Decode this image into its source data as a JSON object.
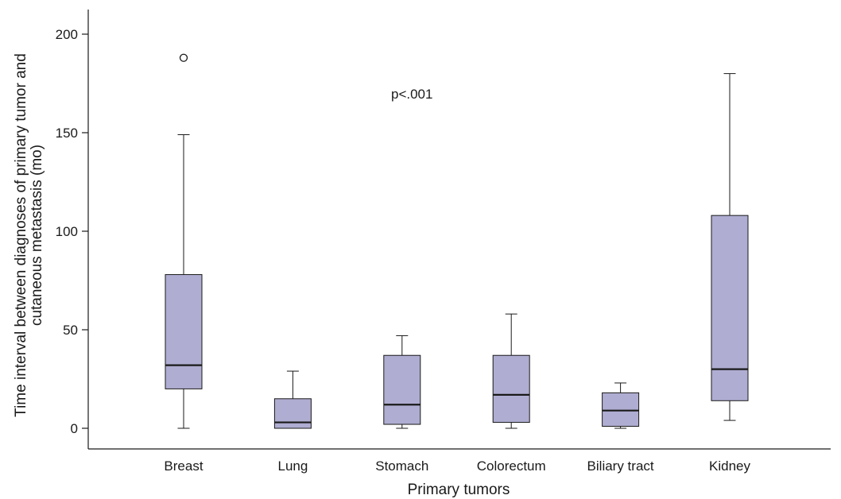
{
  "chart_data": {
    "type": "box",
    "xlabel": "Primary tumors",
    "ylabel_lines": [
      "Time interval between diagnoses of primary tumor and",
      "cutaneous metastasis (mo)"
    ],
    "annotation": "p<.001",
    "ylim": [
      -10,
      212
    ],
    "yticks": [
      0,
      50,
      100,
      150,
      200
    ],
    "grid": false,
    "box_color": "#afadd1",
    "categories": [
      "Breast",
      "Lung",
      "Stomach",
      "Colorectum",
      "Biliary tract",
      "Kidney"
    ],
    "boxes": [
      {
        "category": "Breast",
        "whisker_low": 0,
        "q1": 20,
        "median": 32,
        "q3": 78,
        "whisker_high": 149,
        "outliers": [
          188
        ]
      },
      {
        "category": "Lung",
        "whisker_low": 0,
        "q1": 0,
        "median": 3,
        "q3": 15,
        "whisker_high": 29,
        "outliers": []
      },
      {
        "category": "Stomach",
        "whisker_low": 0,
        "q1": 2,
        "median": 12,
        "q3": 37,
        "whisker_high": 47,
        "outliers": []
      },
      {
        "category": "Colorectum",
        "whisker_low": 0,
        "q1": 3,
        "median": 17,
        "q3": 37,
        "whisker_high": 58,
        "outliers": []
      },
      {
        "category": "Biliary tract",
        "whisker_low": 0,
        "q1": 1,
        "median": 9,
        "q3": 18,
        "whisker_high": 23,
        "outliers": []
      },
      {
        "category": "Kidney",
        "whisker_low": 4,
        "q1": 14,
        "median": 30,
        "q3": 108,
        "whisker_high": 180,
        "outliers": []
      }
    ]
  }
}
